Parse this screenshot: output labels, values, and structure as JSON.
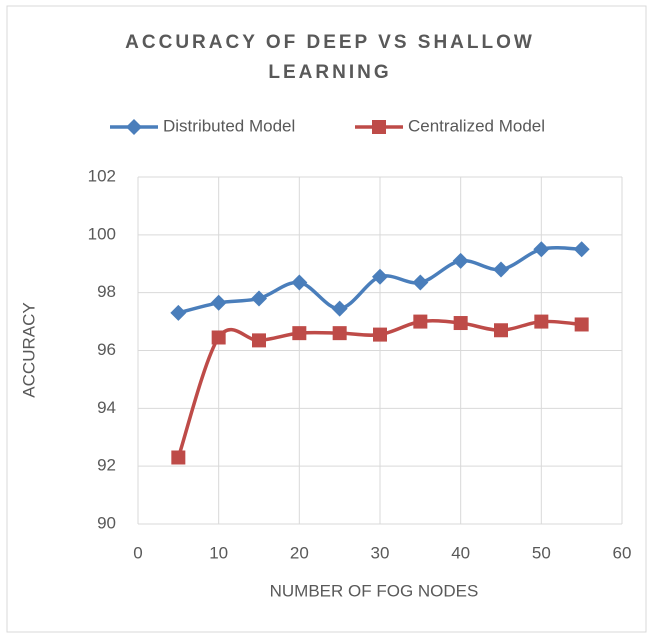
{
  "chart_data": {
    "type": "line",
    "title": "ACCURACY OF DEEP VS SHALLOW LEARNING",
    "xlabel": "NUMBER OF FOG NODES",
    "ylabel": "ACCURACY",
    "x": [
      5,
      10,
      15,
      20,
      25,
      30,
      35,
      40,
      45,
      50,
      55
    ],
    "series": [
      {
        "name": "Distributed Model",
        "color": "#4a7ebb",
        "marker": "diamond",
        "values": [
          97.3,
          97.65,
          97.8,
          98.35,
          97.45,
          98.55,
          98.35,
          99.1,
          98.8,
          99.5,
          99.5
        ]
      },
      {
        "name": "Centralized Model",
        "color": "#be4b48",
        "marker": "square",
        "values": [
          92.3,
          96.45,
          96.35,
          96.6,
          96.6,
          96.55,
          97.0,
          96.95,
          96.7,
          97.0,
          96.9
        ]
      }
    ],
    "xlim": [
      0,
      60
    ],
    "xticks": [
      0,
      10,
      20,
      30,
      40,
      50,
      60
    ],
    "ylim": [
      90,
      102
    ],
    "yticks": [
      90,
      92,
      94,
      96,
      98,
      100,
      102
    ],
    "grid": true,
    "legend": "top",
    "smooth": true
  }
}
